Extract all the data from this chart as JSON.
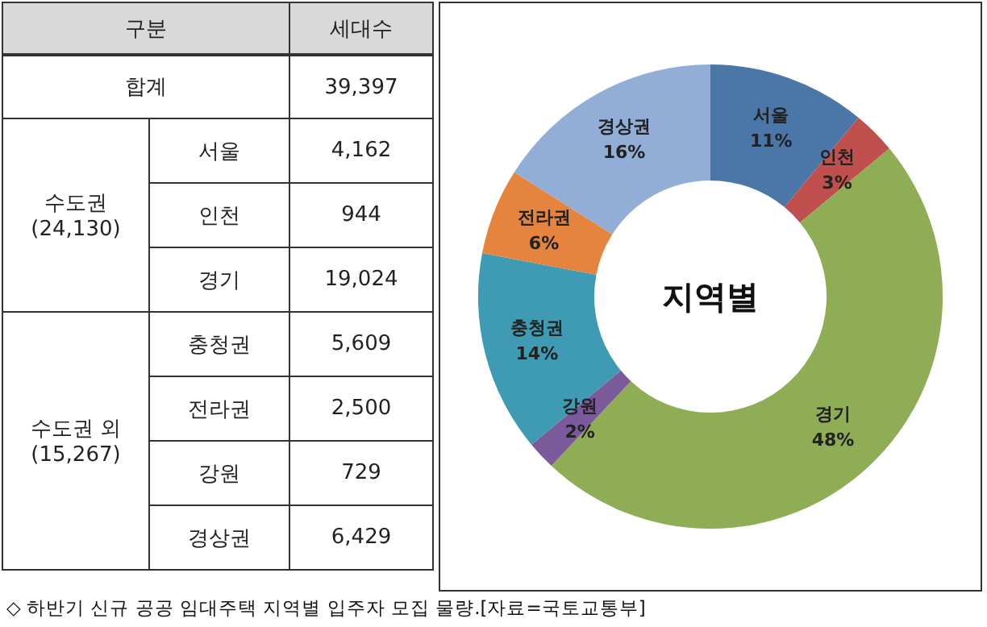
{
  "chart_data": {
    "type": "donut",
    "title": "지역별",
    "categories": [
      "서울",
      "인천",
      "경기",
      "강원",
      "충청권",
      "전라권",
      "경상권"
    ],
    "values": [
      11,
      3,
      48,
      2,
      14,
      6,
      16
    ],
    "value_labels": [
      "11%",
      "3%",
      "48%",
      "2%",
      "14%",
      "6%",
      "16%"
    ],
    "colors": [
      "#4a76a8",
      "#c0504d",
      "#8fad55",
      "#7a5a9a",
      "#3f9ab3",
      "#e5843f",
      "#93aed6"
    ],
    "annotations": [
      "구분",
      "세대수",
      "합계",
      "39,397",
      "수도권",
      "(24,130)",
      "서울",
      "4,162",
      "인천",
      "944",
      "경기",
      "19,024",
      "수도권 외",
      "(15,267)",
      "충청권",
      "5,609",
      "전라권",
      "2,500",
      "강원",
      "729",
      "경상권",
      "6,429",
      "◇ 하반기 신규 공공 임대주택 지역별 입주자 모집 물량.[자료=국토교통부]"
    ]
  }
}
